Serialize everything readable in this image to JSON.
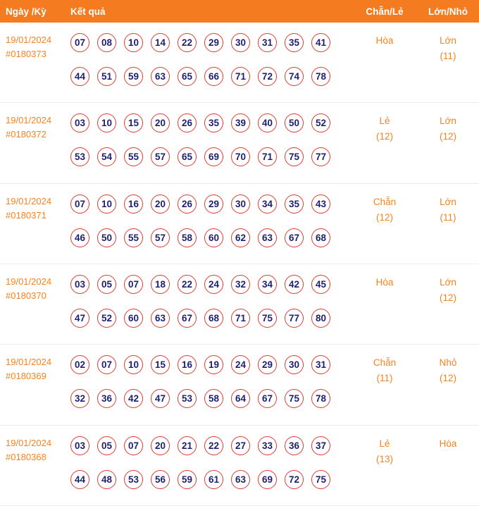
{
  "colors": {
    "header_bg": "#f47b20",
    "header_text": "#ffffff",
    "accent_text": "#f5821f",
    "ball_border": "#e23b2f",
    "ball_text": "#1f1f6e",
    "row_divider": "#ededed"
  },
  "table": {
    "headers": {
      "date": "Ngày /Kỳ",
      "result": "Kết quả",
      "even_odd": "Chẵn/Lẻ",
      "big_small": "Lớn/Nhỏ"
    },
    "rows": [
      {
        "date": "19/01/2024",
        "draw_id": "#0180373",
        "numbers": [
          [
            "07",
            "08",
            "10",
            "14",
            "22",
            "29",
            "30",
            "31",
            "35",
            "41"
          ],
          [
            "44",
            "51",
            "59",
            "63",
            "65",
            "66",
            "71",
            "72",
            "74",
            "78"
          ]
        ],
        "even_odd": {
          "label": "Hòa",
          "count": ""
        },
        "big_small": {
          "label": "Lớn",
          "count": "(11)"
        }
      },
      {
        "date": "19/01/2024",
        "draw_id": "#0180372",
        "numbers": [
          [
            "03",
            "10",
            "15",
            "20",
            "26",
            "35",
            "39",
            "40",
            "50",
            "52"
          ],
          [
            "53",
            "54",
            "55",
            "57",
            "65",
            "69",
            "70",
            "71",
            "75",
            "77"
          ]
        ],
        "even_odd": {
          "label": "Lẻ",
          "count": "(12)"
        },
        "big_small": {
          "label": "Lớn",
          "count": "(12)"
        }
      },
      {
        "date": "19/01/2024",
        "draw_id": "#0180371",
        "numbers": [
          [
            "07",
            "10",
            "16",
            "20",
            "26",
            "29",
            "30",
            "34",
            "35",
            "43"
          ],
          [
            "46",
            "50",
            "55",
            "57",
            "58",
            "60",
            "62",
            "63",
            "67",
            "68"
          ]
        ],
        "even_odd": {
          "label": "Chẵn",
          "count": "(12)"
        },
        "big_small": {
          "label": "Lớn",
          "count": "(11)"
        }
      },
      {
        "date": "19/01/2024",
        "draw_id": "#0180370",
        "numbers": [
          [
            "03",
            "05",
            "07",
            "18",
            "22",
            "24",
            "32",
            "34",
            "42",
            "45"
          ],
          [
            "47",
            "52",
            "60",
            "63",
            "67",
            "68",
            "71",
            "75",
            "77",
            "80"
          ]
        ],
        "even_odd": {
          "label": "Hòa",
          "count": ""
        },
        "big_small": {
          "label": "Lớn",
          "count": "(12)"
        }
      },
      {
        "date": "19/01/2024",
        "draw_id": "#0180369",
        "numbers": [
          [
            "02",
            "07",
            "10",
            "15",
            "16",
            "19",
            "24",
            "29",
            "30",
            "31"
          ],
          [
            "32",
            "36",
            "42",
            "47",
            "53",
            "58",
            "64",
            "67",
            "75",
            "78"
          ]
        ],
        "even_odd": {
          "label": "Chẵn",
          "count": "(11)"
        },
        "big_small": {
          "label": "Nhỏ",
          "count": "(12)"
        }
      },
      {
        "date": "19/01/2024",
        "draw_id": "#0180368",
        "numbers": [
          [
            "03",
            "05",
            "07",
            "20",
            "21",
            "22",
            "27",
            "33",
            "36",
            "37"
          ],
          [
            "44",
            "48",
            "53",
            "56",
            "59",
            "61",
            "63",
            "69",
            "72",
            "75"
          ]
        ],
        "even_odd": {
          "label": "Lẻ",
          "count": "(13)"
        },
        "big_small": {
          "label": "Hòa",
          "count": ""
        }
      }
    ]
  }
}
